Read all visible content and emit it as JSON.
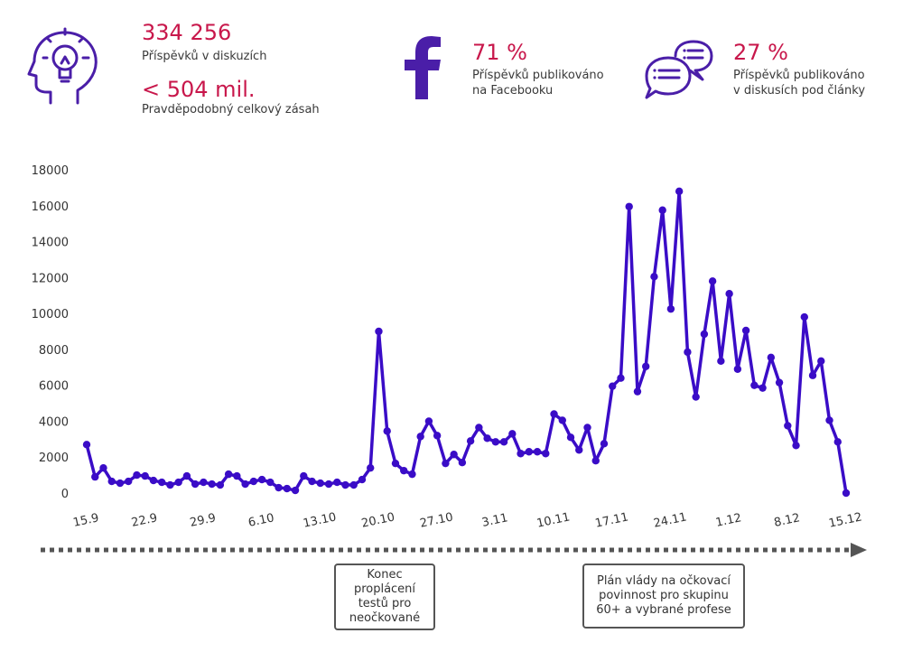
{
  "header": {
    "stat1": {
      "value": "334 256",
      "label": "Příspěvků v diskuzích"
    },
    "stat2": {
      "value": "< 504 mil.",
      "label": "Pravděpodobný celkový zásah"
    },
    "stat3": {
      "value": "71 %",
      "label_line1": "Příspěvků publikováno",
      "label_line2": "na Facebooku"
    },
    "stat4": {
      "value": "27 %",
      "label_line1": "Příspěvků publikováno",
      "label_line2": "v diskusích pod články"
    }
  },
  "colors": {
    "accent": "#c8174b",
    "line": "#3a0cc7",
    "icon": "#4a1ea8",
    "axis": "#555555"
  },
  "icons": {
    "stat1": "head-lightbulb-icon",
    "stat3": "facebook-icon",
    "stat4": "chat-bubbles-icon"
  },
  "chart_data": {
    "type": "line",
    "title": "",
    "xlabel": "",
    "ylabel": "",
    "ylim": [
      0,
      18000
    ],
    "yticks": [
      0,
      2000,
      4000,
      6000,
      8000,
      10000,
      12000,
      14000,
      16000,
      18000
    ],
    "grid": false,
    "x_tick_labels": [
      "15.9",
      "22.9",
      "29.9",
      "6.10",
      "13.10",
      "20.10",
      "27.10",
      "3.11",
      "10.11",
      "17.11",
      "24.11",
      "1.12",
      "8.12",
      "15.12"
    ],
    "series": [
      {
        "values": [
          2700,
          900,
          1400,
          650,
          550,
          650,
          1000,
          950,
          700,
          600,
          450,
          600,
          950,
          500,
          600,
          500,
          450,
          1050,
          950,
          500,
          650,
          750,
          600,
          300,
          250,
          150,
          950,
          650,
          550,
          500,
          600,
          450,
          450,
          750,
          1400,
          9000,
          3450,
          1650,
          1250,
          1050,
          3150,
          4000,
          3200,
          1650,
          2150,
          1700,
          2900,
          3650,
          3050,
          2850,
          2850,
          3300,
          2200,
          2300,
          2300,
          2200,
          4400,
          4050,
          3100,
          2400,
          3650,
          1800,
          2750,
          5950,
          6400,
          15950,
          5650,
          7050,
          12050,
          15750,
          10250,
          16800,
          7850,
          5350,
          8850,
          11800,
          7350,
          11100,
          6900,
          9050,
          6000,
          5850,
          7550,
          6150,
          3750,
          2650,
          9800,
          6550,
          7350,
          4050,
          2850,
          0
        ]
      }
    ],
    "annotations": [
      {
        "lines": [
          "Konec",
          "proplácení",
          "testů pro",
          "neočkované"
        ]
      },
      {
        "lines": [
          "Plán vlády na očkovací",
          "povinnost pro skupinu",
          "60+ a vybrané profese"
        ]
      }
    ]
  }
}
